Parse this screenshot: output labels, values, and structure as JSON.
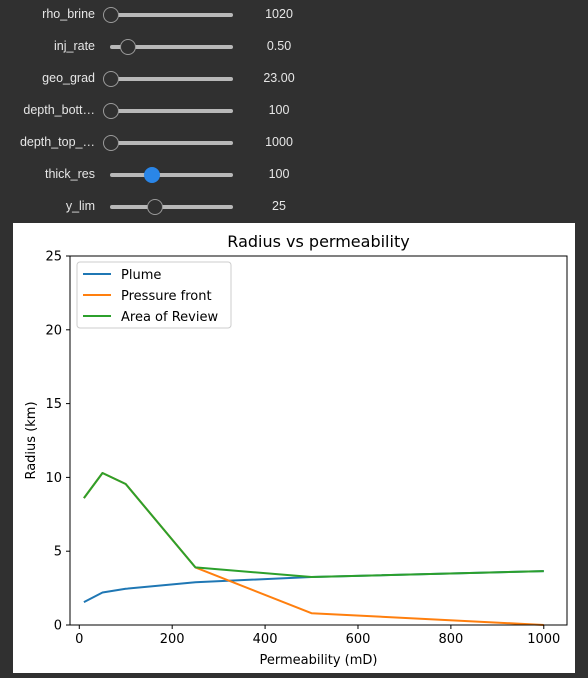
{
  "sliders": [
    {
      "label": "rho_brine",
      "value": "1020",
      "fraction": 0.0,
      "active": false
    },
    {
      "label": "inj_rate",
      "value": "0.50",
      "fraction": 0.14,
      "active": false
    },
    {
      "label": "geo_grad",
      "value": "23.00",
      "fraction": 0.0,
      "active": false
    },
    {
      "label": "depth_bott…",
      "value": "100",
      "fraction": 0.0,
      "active": false
    },
    {
      "label": "depth_top_…",
      "value": "1000",
      "fraction": 0.0,
      "active": false
    },
    {
      "label": "thick_res",
      "value": "100",
      "fraction": 0.34,
      "active": true
    },
    {
      "label": "y_lim",
      "value": "25",
      "fraction": 0.36,
      "active": false
    }
  ],
  "chart_data": {
    "type": "line",
    "title": "Radius vs permeability",
    "xlabel": "Permeability (mD)",
    "ylabel": "Radius (km)",
    "xlim": [
      -20,
      1050
    ],
    "ylim": [
      0,
      25
    ],
    "xticks": [
      0,
      200,
      400,
      600,
      800,
      1000
    ],
    "yticks": [
      0,
      5,
      10,
      15,
      20,
      25
    ],
    "grid": false,
    "legend_position": "top-left",
    "series": [
      {
        "name": "Plume",
        "color": "#1f77b4",
        "x": [
          10,
          50,
          100,
          250,
          500,
          1000
        ],
        "y": [
          1.55,
          2.2,
          2.45,
          2.9,
          3.25,
          3.65
        ]
      },
      {
        "name": "Pressure front",
        "color": "#ff7f0e",
        "x": [
          10,
          50,
          100,
          250,
          500,
          1000
        ],
        "y": [
          8.6,
          10.3,
          9.55,
          3.9,
          0.8,
          0.0
        ]
      },
      {
        "name": "Area of Review",
        "color": "#2ca02c",
        "x": [
          10,
          50,
          100,
          250,
          500,
          1000
        ],
        "y": [
          8.6,
          10.3,
          9.55,
          3.9,
          3.25,
          3.65
        ]
      }
    ]
  }
}
